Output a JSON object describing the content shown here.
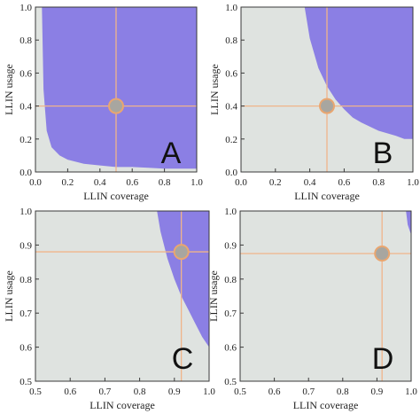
{
  "colors": {
    "background_region": "#dfe3e0",
    "feasible_region": "#8b7fe4",
    "crosshair": "#f0b48a",
    "point_fill": "#a8a6a0",
    "point_stroke": "#e9a670",
    "frame": "#3a3a3a"
  },
  "chart_data": [
    {
      "type": "area",
      "panel": "A",
      "xlabel": "LLIN coverage",
      "ylabel": "LLIN usage",
      "xlim": [
        0.0,
        1.0
      ],
      "ylim": [
        0.0,
        1.0
      ],
      "xticks": [
        "0.0",
        "0.2",
        "0.4",
        "0.6",
        "0.8",
        "1.0"
      ],
      "yticks": [
        "0.0",
        "0.2",
        "0.4",
        "0.6",
        "0.8",
        "1.0"
      ],
      "region_boundary": {
        "x": [
          0.04,
          0.05,
          0.07,
          0.1,
          0.15,
          0.2,
          0.3,
          0.4,
          0.5,
          0.6,
          0.7,
          0.8,
          0.9,
          1.0
        ],
        "y": [
          1.0,
          0.5,
          0.25,
          0.15,
          0.1,
          0.075,
          0.05,
          0.04,
          0.03,
          0.03,
          0.025,
          0.02,
          0.02,
          0.02
        ]
      },
      "point": {
        "x": 0.5,
        "y": 0.4
      }
    },
    {
      "type": "area",
      "panel": "B",
      "xlabel": "LLIN coverage",
      "ylabel": "LLIN usage",
      "xlim": [
        0.0,
        1.0
      ],
      "ylim": [
        0.0,
        1.0
      ],
      "xticks": [
        "0.0",
        "0.2",
        "0.4",
        "0.6",
        "0.8",
        "1.0"
      ],
      "yticks": [
        "0.0",
        "0.2",
        "0.4",
        "0.6",
        "0.8",
        "1.0"
      ],
      "region_boundary": {
        "x": [
          0.37,
          0.4,
          0.45,
          0.5,
          0.55,
          0.6,
          0.65,
          0.7,
          0.8,
          0.9,
          0.95
        ],
        "y": [
          1.0,
          0.81,
          0.63,
          0.52,
          0.44,
          0.38,
          0.33,
          0.3,
          0.25,
          0.22,
          0.2
        ]
      },
      "point": {
        "x": 0.5,
        "y": 0.4
      }
    },
    {
      "type": "area",
      "panel": "C",
      "xlabel": "LLIN coverage",
      "ylabel": "LLIN usage",
      "xlim": [
        0.5,
        1.0
      ],
      "ylim": [
        0.5,
        1.0
      ],
      "xticks": [
        "0.5",
        "0.6",
        "0.7",
        "0.8",
        "0.9",
        "1.0"
      ],
      "yticks": [
        "0.5",
        "0.6",
        "0.7",
        "0.8",
        "0.9",
        "1.0"
      ],
      "region_boundary": {
        "x": [
          0.85,
          0.86,
          0.88,
          0.9,
          0.92,
          0.94,
          0.96,
          0.98,
          1.0
        ],
        "y": [
          1.0,
          0.94,
          0.86,
          0.8,
          0.75,
          0.71,
          0.67,
          0.63,
          0.6
        ]
      },
      "point": {
        "x": 0.92,
        "y": 0.88
      }
    },
    {
      "type": "area",
      "panel": "D",
      "xlabel": "LLIN coverage",
      "ylabel": "LLIN usage",
      "xlim": [
        0.5,
        1.0
      ],
      "ylim": [
        0.5,
        1.0
      ],
      "xticks": [
        "0.5",
        "0.6",
        "0.7",
        "0.8",
        "0.9",
        "1.0"
      ],
      "yticks": [
        "0.5",
        "0.6",
        "0.7",
        "0.8",
        "0.9",
        "1.0"
      ],
      "region_boundary": {
        "x": [
          0.985,
          0.99,
          1.0
        ],
        "y": [
          1.0,
          0.96,
          0.93
        ]
      },
      "point": {
        "x": 0.915,
        "y": 0.875
      }
    }
  ]
}
